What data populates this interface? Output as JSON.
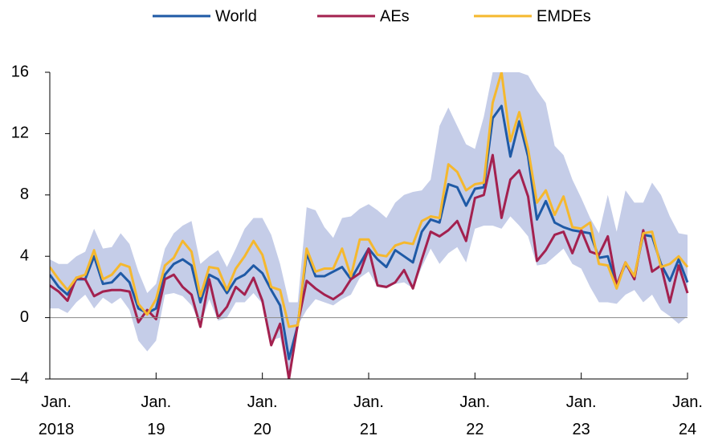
{
  "chart_data": {
    "type": "line",
    "categories": [
      "Jan.\n2018",
      null,
      null,
      null,
      null,
      null,
      null,
      null,
      null,
      null,
      null,
      null,
      "Jan.\n19",
      null,
      null,
      null,
      null,
      null,
      null,
      null,
      null,
      null,
      null,
      null,
      "Jan.\n20",
      null,
      null,
      null,
      null,
      null,
      null,
      null,
      null,
      null,
      null,
      null,
      "Jan.\n21",
      null,
      null,
      null,
      null,
      null,
      null,
      null,
      null,
      null,
      null,
      null,
      "Jan.\n22",
      null,
      null,
      null,
      null,
      null,
      null,
      null,
      null,
      null,
      null,
      null,
      "Jan.\n23",
      null,
      null,
      null,
      null,
      null,
      null,
      null,
      null,
      null,
      null,
      null,
      "Jan.\n24"
    ],
    "ylim": [
      -4,
      16
    ],
    "yticks": [
      {
        "value": -4,
        "label": "–4"
      },
      0,
      4,
      8,
      12,
      16
    ],
    "band": {
      "color": "#c5cde8",
      "upper": [
        3.8,
        3.5,
        3.5,
        4.0,
        4.3,
        5.8,
        4.5,
        4.6,
        5.5,
        4.8,
        3.0,
        1.6,
        2.2,
        4.5,
        5.5,
        6.0,
        6.3,
        3.5,
        4.0,
        4.4,
        3.3,
        4.5,
        5.8,
        6.5,
        6.5,
        5.4,
        3.5,
        1.0,
        1.0,
        7.2,
        7.0,
        5.9,
        5.2,
        6.5,
        6.6,
        7.1,
        7.4,
        7.0,
        6.5,
        7.5,
        8.0,
        8.2,
        8.3,
        9.0,
        12.5,
        13.7,
        12.5,
        11.3,
        11.0,
        13.1,
        16,
        16,
        16,
        16,
        15.8,
        14.8,
        14.0,
        11.2,
        10.6,
        9.0,
        7.8,
        6.5,
        5.5,
        8.0,
        5.6,
        8.3,
        7.5,
        7.5,
        8.8,
        8.0,
        6.6,
        5.5,
        5.4
      ],
      "lower": [
        0.6,
        0.6,
        0.3,
        1.0,
        1.5,
        0.6,
        1.3,
        0.9,
        1.3,
        0.5,
        -1.5,
        -2.2,
        -1.5,
        1.5,
        1.6,
        1.4,
        0.8,
        -0.5,
        1.2,
        -0.2,
        0.0,
        1.0,
        1.0,
        1.6,
        0.9,
        -1.5,
        -1.3,
        -4,
        -0.5,
        0.5,
        1.2,
        1.0,
        0.8,
        1.2,
        1.5,
        2.6,
        3.0,
        2.0,
        1.9,
        2.2,
        2.3,
        1.9,
        3.3,
        4.5,
        3.5,
        4.2,
        4.6,
        3.6,
        5.8,
        6.0,
        6.0,
        5.8,
        6.6,
        6.0,
        5.3,
        3.4,
        3.5,
        4.0,
        4.5,
        3.5,
        3.2,
        2.0,
        1.0,
        1.0,
        0.9,
        1.5,
        1.8,
        1.0,
        1.5,
        0.5,
        0.1,
        -0.4,
        0.1
      ]
    },
    "series": [
      {
        "name": "World",
        "color": "#1f5aa6",
        "values": [
          2.8,
          2.0,
          1.5,
          2.5,
          2.5,
          4.0,
          2.2,
          2.3,
          2.9,
          2.3,
          0.6,
          0.3,
          0.6,
          2.8,
          3.5,
          3.8,
          3.4,
          1.0,
          2.8,
          2.5,
          1.6,
          2.5,
          2.8,
          3.4,
          2.9,
          1.8,
          0.8,
          -2.7,
          -0.5,
          4.2,
          2.7,
          2.7,
          3.0,
          3.3,
          2.5,
          3.5,
          4.5,
          3.8,
          3.3,
          4.4,
          4.0,
          3.6,
          5.6,
          6.4,
          6.2,
          8.7,
          8.5,
          7.3,
          8.4,
          8.5,
          13.0,
          13.8,
          10.5,
          12.8,
          10.5,
          6.4,
          7.6,
          6.2,
          5.9,
          5.7,
          5.6,
          5.5,
          3.9,
          4.0,
          2.1,
          3.5,
          2.7,
          5.4,
          5.3,
          3.5,
          2.4,
          3.8,
          2.3
        ]
      },
      {
        "name": "AEs",
        "color": "#a3214f",
        "values": [
          2.1,
          1.7,
          1.1,
          2.6,
          2.5,
          1.4,
          1.7,
          1.8,
          1.8,
          1.7,
          -0.3,
          0.5,
          -0.1,
          2.5,
          2.8,
          2.0,
          1.5,
          -0.6,
          2.5,
          0.0,
          0.7,
          2.0,
          1.5,
          2.6,
          1.1,
          -1.8,
          -0.4,
          -4.0,
          -0.4,
          2.4,
          1.9,
          1.5,
          1.2,
          1.6,
          2.5,
          2.9,
          4.5,
          2.1,
          2.0,
          2.3,
          3.1,
          1.9,
          3.8,
          5.6,
          5.3,
          5.7,
          6.3,
          5.0,
          7.8,
          8.0,
          10.6,
          6.5,
          9.0,
          9.6,
          7.9,
          3.7,
          4.4,
          5.4,
          5.6,
          4.2,
          5.7,
          4.3,
          4.1,
          5.3,
          2.1,
          3.6,
          2.5,
          5.7,
          3.0,
          3.4,
          1.0,
          3.4,
          1.6
        ]
      },
      {
        "name": "EMDEs",
        "color": "#f5b82e",
        "values": [
          3.3,
          2.5,
          1.8,
          2.6,
          2.8,
          4.4,
          2.5,
          2.8,
          3.5,
          3.3,
          0.9,
          0.2,
          1.2,
          3.4,
          3.9,
          5.0,
          4.3,
          1.4,
          3.3,
          3.2,
          1.8,
          3.2,
          4.0,
          5.0,
          4.1,
          2.0,
          1.8,
          -0.6,
          -0.5,
          4.5,
          3.0,
          3.2,
          3.2,
          4.5,
          2.7,
          5.1,
          5.1,
          4.1,
          4.0,
          4.7,
          4.9,
          4.8,
          6.3,
          6.6,
          6.5,
          10.0,
          9.5,
          8.3,
          8.7,
          8.8,
          14.0,
          16.0,
          11.5,
          13.4,
          11.0,
          7.5,
          8.3,
          6.7,
          7.9,
          5.9,
          5.8,
          6.2,
          3.5,
          3.4,
          1.9,
          3.6,
          2.7,
          5.5,
          5.6,
          3.3,
          3.5,
          4.0,
          3.3
        ]
      }
    ],
    "legend": "top"
  }
}
